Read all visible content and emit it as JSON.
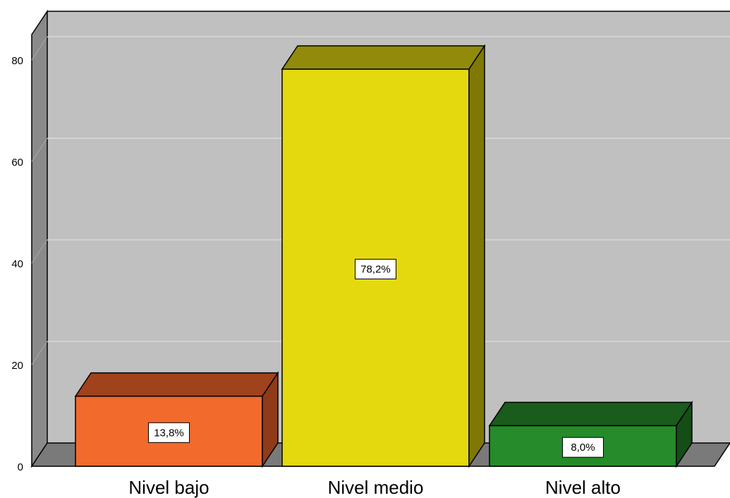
{
  "chart_data": {
    "type": "bar",
    "title": "",
    "xlabel": "",
    "ylabel": "",
    "ylim": [
      0,
      85
    ],
    "yticks": [
      "0",
      "20",
      "40",
      "60",
      "80"
    ],
    "categories": [
      "Nivel bajo",
      "Nivel medio",
      "Nivel alto"
    ],
    "values": [
      13.8,
      78.2,
      8.0
    ],
    "data_labels": [
      "13,8%",
      "78,2%",
      "8,0%"
    ],
    "grid": true,
    "style": "3d",
    "colors": {
      "bars": [
        "#f26a2c",
        "#e4d80e",
        "#268b2a"
      ],
      "bar_tops": [
        "#a0421c",
        "#918a0a",
        "#195c1b"
      ],
      "bar_sides": [
        "#8f3b17",
        "#7f7806",
        "#144d16"
      ],
      "wall": "#c0c0c0",
      "side_wall": "#8a8a8a",
      "floor": "#7a7a7a",
      "grid": "#d9d9d9"
    }
  }
}
